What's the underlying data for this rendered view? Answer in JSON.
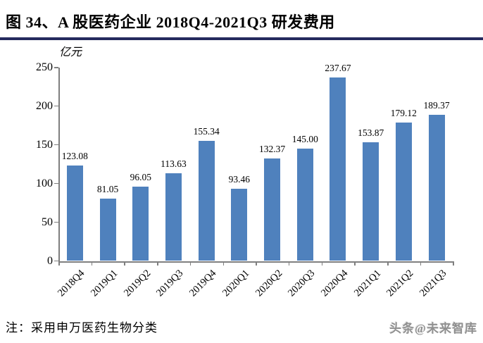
{
  "header": {
    "figure_label": "图 34、",
    "title": "图 34、A 股医药企业 2018Q4-2021Q3 研发费用",
    "underline_color": "#252a5e"
  },
  "chart_data": {
    "type": "bar",
    "title": "A 股医药企业 2018Q4-2021Q3 研发费用",
    "unit_label": "亿元",
    "categories": [
      "2018Q4",
      "2019Q1",
      "2019Q2",
      "2019Q3",
      "2019Q4",
      "2020Q1",
      "2020Q2",
      "2020Q3",
      "2020Q4",
      "2021Q1",
      "2021Q2",
      "2021Q3"
    ],
    "values": [
      123.08,
      81.05,
      96.05,
      113.63,
      155.34,
      93.46,
      132.37,
      145.0,
      237.67,
      153.87,
      179.12,
      189.37
    ],
    "value_labels": [
      "123.08",
      "81.05",
      "96.05",
      "113.63",
      "155.34",
      "93.46",
      "132.37",
      "145.00",
      "237.67",
      "153.87",
      "179.12",
      "189.37"
    ],
    "xlabel": "",
    "ylabel": "亿元",
    "ylim": [
      0,
      250
    ],
    "yticks": [
      0,
      50,
      100,
      150,
      200,
      250
    ],
    "grid": false,
    "legend": "none",
    "bar_color": "#4f81bd",
    "axis_color": "#7f7f7f"
  },
  "footer": {
    "note": "注：采用申万医药生物分类",
    "watermark": "头条@未来智库"
  }
}
